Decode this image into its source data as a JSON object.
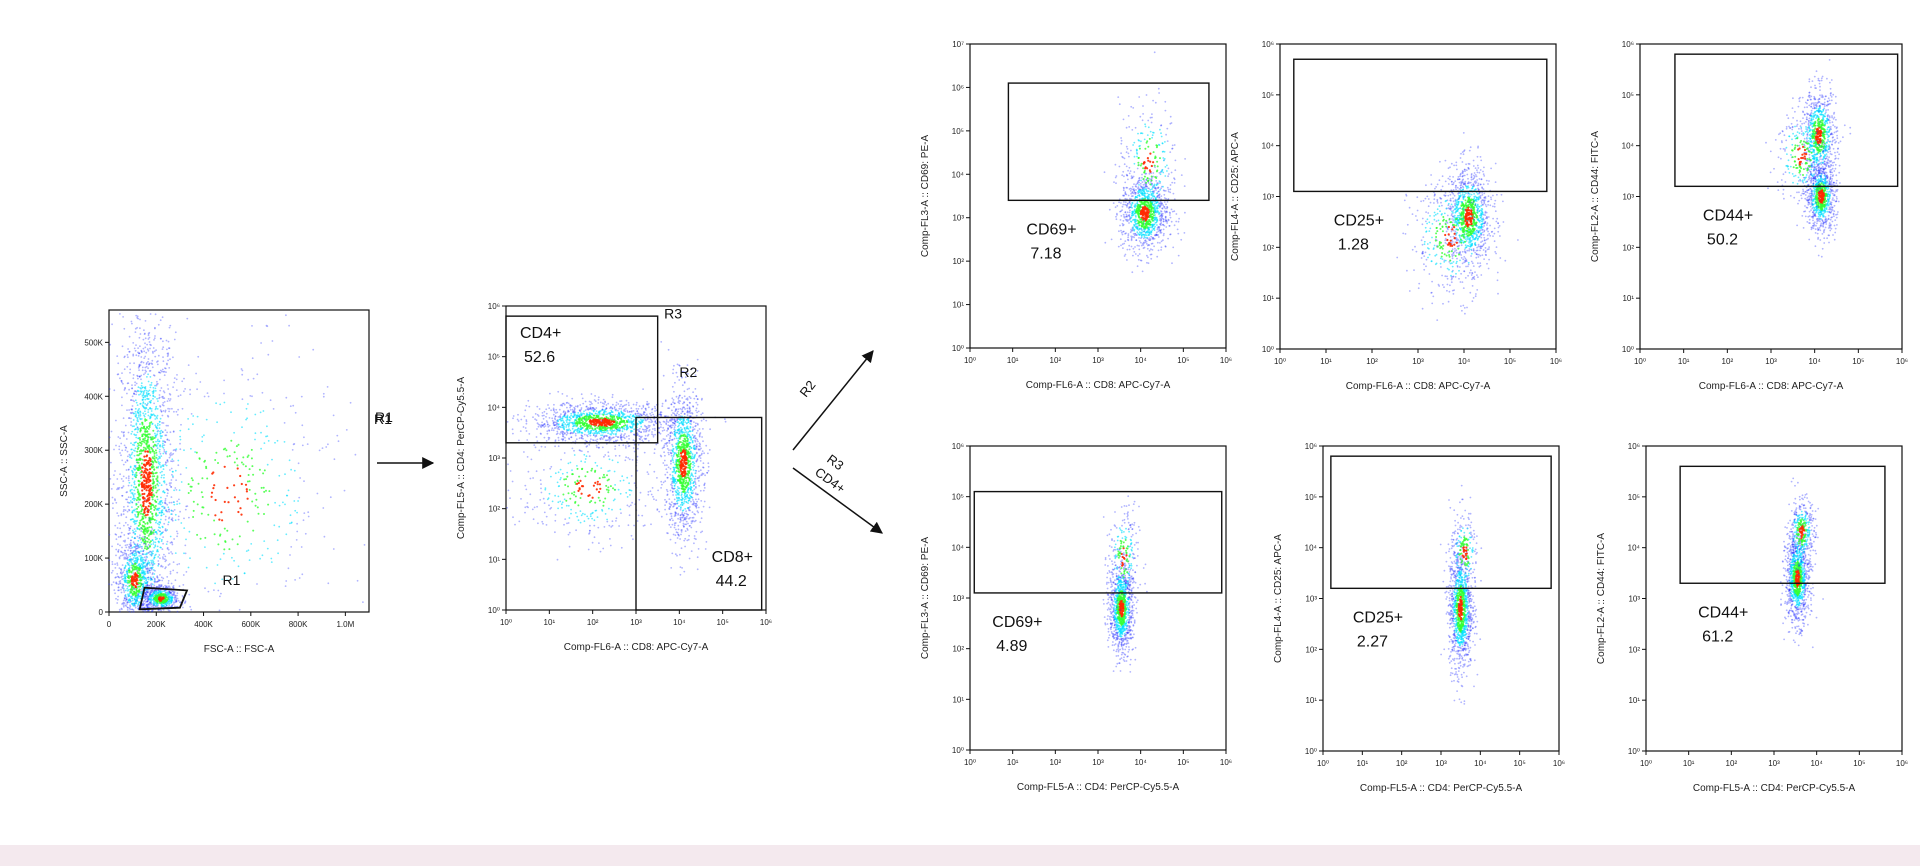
{
  "colors": {
    "density_low": "#1f2cff",
    "density_mid": "#00e0ff",
    "density_high": "#33ff33",
    "density_peak": "#ff2a00",
    "gate_line": "#111111",
    "bottom_band": "#f4e9ee"
  },
  "chart_data": [
    {
      "id": "fsc-ssc",
      "type": "scatter",
      "xlabel": "FSC-A :: FSC-A",
      "ylabel": "SSC-A :: SSC-A",
      "scale": "linear",
      "xlim": [
        0,
        1100000
      ],
      "ylim": [
        0,
        560000
      ],
      "x_ticks": [
        0,
        200000,
        400000,
        600000,
        800000,
        1000000
      ],
      "x_tick_labels": [
        "0",
        "200K",
        "400K",
        "600K",
        "800K",
        "1.0M"
      ],
      "y_ticks": [
        0,
        100000,
        200000,
        300000,
        400000,
        500000
      ],
      "y_tick_labels": [
        "0",
        "100K",
        "200K",
        "300K",
        "400K",
        "500K"
      ],
      "gates": [
        {
          "name": "R1",
          "kind": "polygon",
          "points": [
            [
              130000,
              5000
            ],
            [
              300000,
              8000
            ],
            [
              330000,
              40000
            ],
            [
              150000,
              45000
            ]
          ]
        }
      ],
      "populations": [
        {
          "x": 160000,
          "y": 240000,
          "sx": 60000,
          "sy": 160000,
          "n": 1900
        },
        {
          "x": 110000,
          "y": 60000,
          "sx": 40000,
          "sy": 40000,
          "n": 700
        },
        {
          "x": 220000,
          "y": 25000,
          "sx": 40000,
          "sy": 12000,
          "n": 550
        },
        {
          "x": 500000,
          "y": 220000,
          "sx": 240000,
          "sy": 140000,
          "n": 450
        }
      ],
      "labels": [
        {
          "text": "R1",
          "at": [
            480000,
            50000
          ]
        },
        {
          "text": "R1",
          "at": "outside-right"
        }
      ]
    },
    {
      "id": "cd4-cd8",
      "type": "scatter",
      "xlabel": "Comp-FL6-A :: CD8: APC-Cy7-A",
      "ylabel": "Comp-FL5-A :: CD4: PerCP-Cy5.5-A",
      "scale": "log",
      "xlim": [
        0,
        6
      ],
      "ylim": [
        0,
        6
      ],
      "x_ticks": [
        0,
        1,
        2,
        3,
        4,
        5,
        6
      ],
      "y_ticks": [
        0,
        1,
        2,
        3,
        4,
        5,
        6
      ],
      "gates": [
        {
          "name": "CD4+",
          "percent": "52.6",
          "region": "R3",
          "kind": "rect",
          "x": [
            0,
            3.5
          ],
          "y": [
            3.3,
            5.8
          ]
        },
        {
          "name": "CD8+",
          "percent": "44.2",
          "region": "R2",
          "kind": "rect",
          "x": [
            3.0,
            5.9
          ],
          "y": [
            0,
            3.8
          ]
        }
      ],
      "populations": [
        {
          "x": 2.2,
          "y": 3.7,
          "sx": 0.8,
          "sy": 0.2,
          "n": 1300
        },
        {
          "x": 4.1,
          "y": 2.9,
          "sx": 0.22,
          "sy": 0.75,
          "n": 1200
        },
        {
          "x": 1.9,
          "y": 2.4,
          "sx": 0.8,
          "sy": 0.55,
          "n": 350
        }
      ],
      "labels": [
        {
          "text": "R3",
          "at": [
            3.65,
            5.75
          ]
        },
        {
          "text": "R2",
          "at": [
            4.0,
            4.6
          ]
        }
      ]
    },
    {
      "id": "cd8-cd69",
      "type": "scatter",
      "xlabel": "Comp-FL6-A :: CD8: APC-Cy7-A",
      "ylabel": "Comp-FL3-A :: CD69: PE-A",
      "scale": "log",
      "xlim": [
        0,
        6
      ],
      "ylim": [
        0,
        7
      ],
      "x_ticks": [
        0,
        1,
        2,
        3,
        4,
        5,
        6
      ],
      "y_ticks": [
        0,
        1,
        2,
        3,
        4,
        5,
        6,
        7
      ],
      "gates": [
        {
          "name": "CD69+",
          "percent": "7.18",
          "kind": "rect",
          "x": [
            0.9,
            5.6
          ],
          "y": [
            3.4,
            6.1
          ]
        }
      ],
      "populations": [
        {
          "x": 4.1,
          "y": 3.1,
          "sx": 0.28,
          "sy": 0.45,
          "n": 1000
        },
        {
          "x": 4.2,
          "y": 4.3,
          "sx": 0.35,
          "sy": 0.7,
          "n": 250
        }
      ],
      "labels": []
    },
    {
      "id": "cd8-cd25",
      "type": "scatter",
      "xlabel": "Comp-FL6-A :: CD8: APC-Cy7-A",
      "ylabel": "Comp-FL4-A :: CD25: APC-A",
      "scale": "log",
      "xlim": [
        0,
        6
      ],
      "ylim": [
        0,
        6
      ],
      "x_ticks": [
        0,
        1,
        2,
        3,
        4,
        5,
        6
      ],
      "y_ticks": [
        0,
        1,
        2,
        3,
        4,
        5,
        6
      ],
      "gates": [
        {
          "name": "CD25+",
          "percent": "1.28",
          "kind": "rect",
          "x": [
            0.3,
            5.8
          ],
          "y": [
            3.1,
            5.7
          ]
        }
      ],
      "populations": [
        {
          "x": 4.1,
          "y": 2.6,
          "sx": 0.25,
          "sy": 0.5,
          "n": 1000
        },
        {
          "x": 3.7,
          "y": 2.2,
          "sx": 0.45,
          "sy": 0.6,
          "n": 350
        }
      ],
      "labels": []
    },
    {
      "id": "cd8-cd44",
      "type": "scatter",
      "xlabel": "Comp-FL6-A :: CD8: APC-Cy7-A",
      "ylabel": "Comp-FL2-A :: CD44: FITC-A",
      "scale": "log",
      "xlim": [
        0,
        6
      ],
      "ylim": [
        0,
        6
      ],
      "x_ticks": [
        0,
        1,
        2,
        3,
        4,
        5,
        6
      ],
      "y_ticks": [
        0,
        1,
        2,
        3,
        4,
        5,
        6
      ],
      "gates": [
        {
          "name": "CD44+",
          "percent": "50.2",
          "kind": "rect",
          "x": [
            0.8,
            5.9
          ],
          "y": [
            3.2,
            5.8
          ]
        }
      ],
      "populations": [
        {
          "x": 4.15,
          "y": 3.0,
          "sx": 0.17,
          "sy": 0.35,
          "n": 800
        },
        {
          "x": 4.1,
          "y": 4.2,
          "sx": 0.2,
          "sy": 0.45,
          "n": 750
        },
        {
          "x": 3.7,
          "y": 3.8,
          "sx": 0.3,
          "sy": 0.5,
          "n": 250
        }
      ],
      "labels": []
    },
    {
      "id": "cd4-cd69",
      "type": "scatter",
      "xlabel": "Comp-FL5-A :: CD4: PerCP-Cy5.5-A",
      "ylabel": "Comp-FL3-A :: CD69: PE-A",
      "scale": "log",
      "xlim": [
        0,
        6
      ],
      "ylim": [
        0,
        6
      ],
      "x_ticks": [
        0,
        1,
        2,
        3,
        4,
        5,
        6
      ],
      "y_ticks": [
        0,
        1,
        2,
        3,
        4,
        5,
        6
      ],
      "gates": [
        {
          "name": "CD69+",
          "percent": "4.89",
          "kind": "rect",
          "x": [
            0.1,
            5.9
          ],
          "y": [
            3.1,
            5.1
          ]
        }
      ],
      "populations": [
        {
          "x": 3.55,
          "y": 2.8,
          "sx": 0.14,
          "sy": 0.45,
          "n": 1000
        },
        {
          "x": 3.6,
          "y": 3.8,
          "sx": 0.18,
          "sy": 0.5,
          "n": 200
        }
      ],
      "labels": []
    },
    {
      "id": "cd4-cd25",
      "type": "scatter",
      "xlabel": "Comp-FL5-A :: CD4: PerCP-Cy5.5-A",
      "ylabel": "Comp-FL4-A :: CD25: APC-A",
      "scale": "log",
      "xlim": [
        0,
        6
      ],
      "ylim": [
        0,
        6
      ],
      "x_ticks": [
        0,
        1,
        2,
        3,
        4,
        5,
        6
      ],
      "y_ticks": [
        0,
        1,
        2,
        3,
        4,
        5,
        6
      ],
      "gates": [
        {
          "name": "CD25+",
          "percent": "2.27",
          "kind": "rect",
          "x": [
            0.2,
            5.8
          ],
          "y": [
            3.2,
            5.8
          ]
        }
      ],
      "populations": [
        {
          "x": 3.5,
          "y": 2.8,
          "sx": 0.15,
          "sy": 0.6,
          "n": 1100
        },
        {
          "x": 3.6,
          "y": 3.9,
          "sx": 0.18,
          "sy": 0.4,
          "n": 200
        }
      ],
      "labels": []
    },
    {
      "id": "cd4-cd44",
      "type": "scatter",
      "xlabel": "Comp-FL5-A :: CD4: PerCP-Cy5.5-A",
      "ylabel": "Comp-FL2-A :: CD44: FITC-A",
      "scale": "log",
      "xlim": [
        0,
        6
      ],
      "ylim": [
        0,
        6
      ],
      "x_ticks": [
        0,
        1,
        2,
        3,
        4,
        5,
        6
      ],
      "y_ticks": [
        0,
        1,
        2,
        3,
        4,
        5,
        6
      ],
      "gates": [
        {
          "name": "CD44+",
          "percent": "61.2",
          "kind": "rect",
          "x": [
            0.8,
            5.6
          ],
          "y": [
            3.3,
            5.6
          ]
        }
      ],
      "populations": [
        {
          "x": 3.55,
          "y": 3.4,
          "sx": 0.14,
          "sy": 0.45,
          "n": 1000
        },
        {
          "x": 3.65,
          "y": 4.3,
          "sx": 0.16,
          "sy": 0.35,
          "n": 350
        }
      ],
      "labels": []
    }
  ],
  "flow": {
    "r1_arrow_label": "R1",
    "r2_arrow_label": "R2",
    "r3_arrow_label": "R3",
    "r3_arrow_sublabel": "CD4+"
  }
}
